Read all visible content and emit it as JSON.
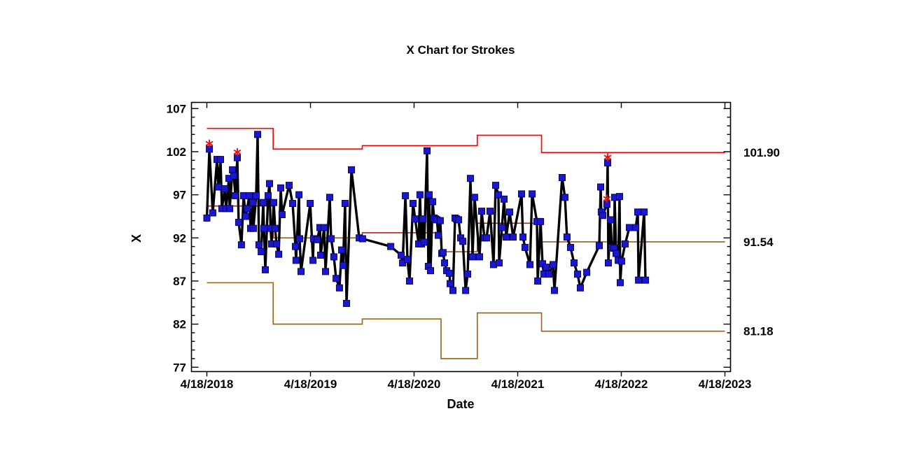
{
  "title": "X Chart for Strokes",
  "chart_data": {
    "type": "line",
    "chart_kind": "individuals-control-chart",
    "title": "X Chart for Strokes",
    "xlabel": "Date",
    "ylabel": "X",
    "x_axis": {
      "start_date": "4/18/2018",
      "tick_labels": [
        "4/18/2018",
        "4/18/2019",
        "4/18/2020",
        "4/18/2021",
        "4/18/2022",
        "4/18/2023"
      ],
      "units": "years since 4/18/2018",
      "range": [
        0,
        5
      ]
    },
    "y_axis": {
      "ticks": [
        77,
        82,
        87,
        92,
        97,
        102,
        107
      ],
      "minor_step": 1,
      "range": [
        76.5,
        107.8
      ]
    },
    "limit_annotations": {
      "ucl_label": "101.90",
      "center_label": "91.54",
      "lcl_label": "81.18"
    },
    "phases": [
      {
        "t0": 0.0,
        "t1": 0.64,
        "ucl": 104.7,
        "center": 95.7,
        "lcl": 86.8
      },
      {
        "t0": 0.64,
        "t1": 1.5,
        "ucl": 102.3,
        "center": 92.0,
        "lcl": 82.0
      },
      {
        "t0": 1.5,
        "t1": 2.26,
        "ucl": 102.7,
        "center": 92.6,
        "lcl": 82.6
      },
      {
        "t0": 2.26,
        "t1": 2.61,
        "ucl": 102.7,
        "center": 90.4,
        "lcl": 78.0
      },
      {
        "t0": 2.61,
        "t1": 3.23,
        "ucl": 103.9,
        "center": 93.7,
        "lcl": 83.3
      },
      {
        "t0": 3.23,
        "t1": 5.0,
        "ucl": 101.9,
        "center": 91.54,
        "lcl": 81.18
      }
    ],
    "points": [
      [
        0.0,
        94.3
      ],
      [
        0.024,
        102.3,
        1
      ],
      [
        0.057,
        94.9
      ],
      [
        0.098,
        101.1
      ],
      [
        0.111,
        97.9
      ],
      [
        0.132,
        101.1
      ],
      [
        0.145,
        95.4
      ],
      [
        0.172,
        97.7
      ],
      [
        0.186,
        95.4
      ],
      [
        0.213,
        98.9
      ],
      [
        0.22,
        95.4
      ],
      [
        0.247,
        99.9
      ],
      [
        0.26,
        99.2
      ],
      [
        0.274,
        96.9
      ],
      [
        0.294,
        101.3,
        1
      ],
      [
        0.307,
        93.8
      ],
      [
        0.334,
        91.2
      ],
      [
        0.355,
        96.9
      ],
      [
        0.375,
        94.5
      ],
      [
        0.389,
        95.4
      ],
      [
        0.409,
        96.9
      ],
      [
        0.422,
        93.1
      ],
      [
        0.443,
        96.1
      ],
      [
        0.449,
        93.1
      ],
      [
        0.476,
        96.9
      ],
      [
        0.49,
        104.0
      ],
      [
        0.503,
        91.2
      ],
      [
        0.524,
        90.4
      ],
      [
        0.544,
        96.1
      ],
      [
        0.551,
        93.1
      ],
      [
        0.564,
        88.3
      ],
      [
        0.591,
        96.9
      ],
      [
        0.605,
        98.3
      ],
      [
        0.615,
        93.1
      ],
      [
        0.625,
        91.3
      ],
      [
        0.645,
        96.1
      ],
      [
        0.659,
        93.1
      ],
      [
        0.672,
        91.3
      ],
      [
        0.693,
        90.1
      ],
      [
        0.713,
        97.8
      ],
      [
        0.726,
        94.7
      ],
      [
        0.794,
        98.1
      ],
      [
        0.828,
        96.0
      ],
      [
        0.855,
        91.0
      ],
      [
        0.861,
        89.4
      ],
      [
        0.889,
        97.0
      ],
      [
        0.895,
        91.9
      ],
      [
        0.909,
        88.1
      ],
      [
        0.997,
        96.0
      ],
      [
        1.024,
        89.4
      ],
      [
        1.03,
        91.9
      ],
      [
        1.064,
        91.8
      ],
      [
        1.091,
        93.2
      ],
      [
        1.098,
        90.0
      ],
      [
        1.132,
        93.2
      ],
      [
        1.145,
        88.1
      ],
      [
        1.186,
        96.7
      ],
      [
        1.199,
        91.9
      ],
      [
        1.226,
        89.8
      ],
      [
        1.247,
        87.3
      ],
      [
        1.28,
        86.2
      ],
      [
        1.301,
        90.6
      ],
      [
        1.314,
        88.8
      ],
      [
        1.334,
        96.0
      ],
      [
        1.348,
        84.4
      ],
      [
        1.395,
        99.9
      ],
      [
        1.47,
        92.0
      ],
      [
        1.503,
        91.9
      ],
      [
        1.774,
        91.0
      ],
      [
        1.875,
        90.0
      ],
      [
        1.889,
        89.1
      ],
      [
        1.916,
        96.9
      ],
      [
        1.936,
        89.5
      ],
      [
        1.956,
        87.0
      ],
      [
        1.99,
        96.0
      ],
      [
        2.01,
        94.2
      ],
      [
        2.044,
        91.3
      ],
      [
        2.057,
        97.0
      ],
      [
        2.071,
        91.3
      ],
      [
        2.084,
        94.2
      ],
      [
        2.098,
        91.5
      ],
      [
        2.125,
        102.1
      ],
      [
        2.138,
        88.7
      ],
      [
        2.145,
        97.0
      ],
      [
        2.159,
        88.2
      ],
      [
        2.179,
        96.2
      ],
      [
        2.193,
        94.3
      ],
      [
        2.206,
        94.2
      ],
      [
        2.22,
        94.1
      ],
      [
        2.233,
        92.3
      ],
      [
        2.253,
        94.0
      ],
      [
        2.267,
        90.2
      ],
      [
        2.28,
        90.3
      ],
      [
        2.294,
        89.1
      ],
      [
        2.314,
        88.2
      ],
      [
        2.341,
        87.9
      ],
      [
        2.348,
        86.7
      ],
      [
        2.375,
        85.9
      ],
      [
        2.395,
        94.3
      ],
      [
        2.409,
        94.2
      ],
      [
        2.429,
        94.1
      ],
      [
        2.449,
        92.0
      ],
      [
        2.47,
        91.6
      ],
      [
        2.497,
        85.9
      ],
      [
        2.517,
        87.8
      ],
      [
        2.544,
        98.9
      ],
      [
        2.564,
        89.8
      ],
      [
        2.584,
        96.7
      ],
      [
        2.632,
        89.8
      ],
      [
        2.652,
        95.1
      ],
      [
        2.679,
        92.0
      ],
      [
        2.699,
        92.0
      ],
      [
        2.733,
        95.1
      ],
      [
        2.767,
        88.9
      ],
      [
        2.787,
        98.1
      ],
      [
        2.814,
        97.0
      ],
      [
        2.821,
        89.1
      ],
      [
        2.848,
        93.2
      ],
      [
        2.868,
        96.5
      ],
      [
        2.889,
        92.1
      ],
      [
        2.922,
        95.0
      ],
      [
        2.956,
        92.1
      ],
      [
        3.037,
        97.1
      ],
      [
        3.051,
        92.1
      ],
      [
        3.071,
        90.9
      ],
      [
        3.118,
        88.9
      ],
      [
        3.139,
        97.1
      ],
      [
        3.186,
        93.9
      ],
      [
        3.193,
        87.0
      ],
      [
        3.22,
        93.9
      ],
      [
        3.24,
        89.0
      ],
      [
        3.253,
        87.8
      ],
      [
        3.274,
        88.6
      ],
      [
        3.301,
        87.8
      ],
      [
        3.341,
        88.9
      ],
      [
        3.355,
        85.9
      ],
      [
        3.429,
        99.0
      ],
      [
        3.456,
        96.7
      ],
      [
        3.476,
        92.1
      ],
      [
        3.51,
        90.9
      ],
      [
        3.544,
        89.1
      ],
      [
        3.578,
        87.8
      ],
      [
        3.605,
        86.2
      ],
      [
        3.666,
        88.0
      ],
      [
        3.787,
        91.1
      ],
      [
        3.801,
        97.9
      ],
      [
        3.807,
        95.0
      ],
      [
        3.821,
        94.6
      ],
      [
        3.861,
        95.9,
        1
      ],
      [
        3.868,
        100.7,
        1
      ],
      [
        3.875,
        89.1
      ],
      [
        3.895,
        94.1
      ],
      [
        3.909,
        90.9
      ],
      [
        3.929,
        90.8
      ],
      [
        3.936,
        96.7
      ],
      [
        3.949,
        90.2
      ],
      [
        3.97,
        89.4
      ],
      [
        3.983,
        96.8
      ],
      [
        3.99,
        86.8
      ],
      [
        4.003,
        89.3
      ],
      [
        4.037,
        91.3
      ],
      [
        4.078,
        93.2
      ],
      [
        4.139,
        93.2
      ],
      [
        4.159,
        95.0
      ],
      [
        4.166,
        87.1
      ],
      [
        4.22,
        95.0
      ],
      [
        4.233,
        87.1
      ]
    ],
    "flag_marker": "red-asterisk",
    "colors": {
      "series_line": "#000000",
      "marker_fill": "#1b16cf",
      "marker_edge": "#050566",
      "ucl": "#fb0607",
      "center_red": "#b22222",
      "center_brown": "#8f5c20",
      "lcl": "#a2691e",
      "flag": "#ee1111",
      "frame": "#000000",
      "text": "#000000"
    },
    "legend": "none",
    "grid": "off"
  }
}
